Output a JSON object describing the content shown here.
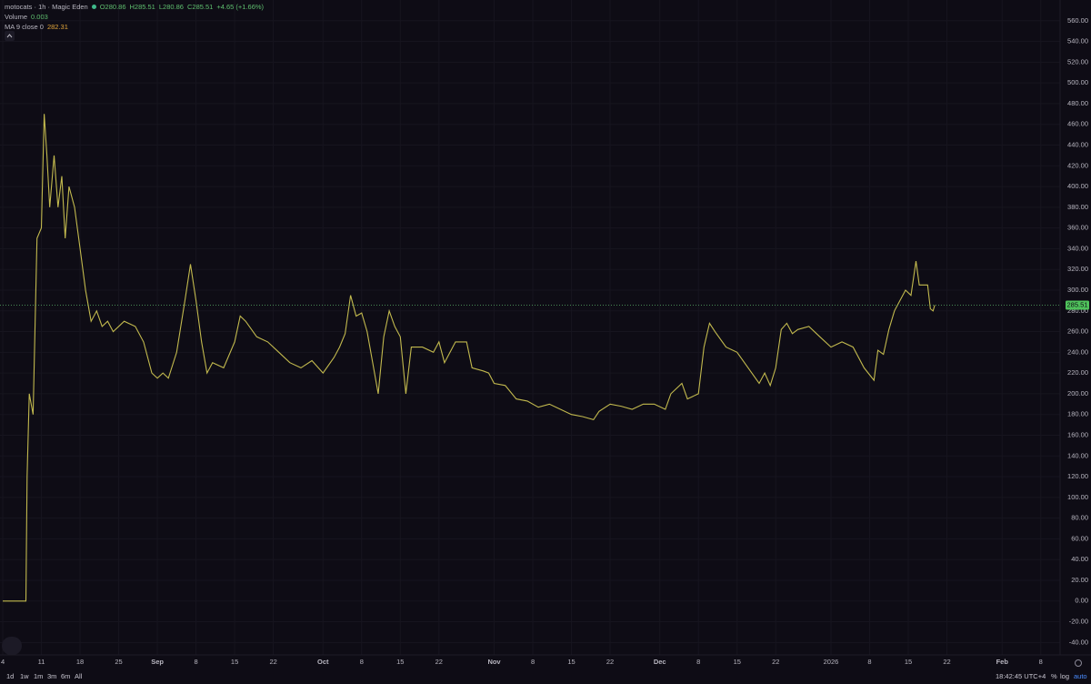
{
  "header": {
    "symbol": "motocats · 1h · Magic Eden",
    "open": "O280.86",
    "high": "H285.51",
    "low": "L280.86",
    "close": "C285.51",
    "change": "+4.65 (+1.66%)",
    "volume_label": "Volume",
    "volume_value": "0.003",
    "ma_label": "MA 9 close 0",
    "ma_value": "282.31"
  },
  "toolbar": {
    "ranges": [
      "1d",
      "1w",
      "1m",
      "3m",
      "6m",
      "All"
    ],
    "clock": "18:42:45 UTC+4",
    "percent": "%",
    "log": "log",
    "auto": "auto"
  },
  "chart_data": {
    "type": "line",
    "grid": true,
    "last_price": 285.51,
    "series": [
      {
        "color": "#c2b94e",
        "x": [
          0,
          4.2,
          4.4,
          4.8,
          5.5,
          6.2,
          7,
          7.5,
          8,
          8.5,
          9.3,
          10,
          10.7,
          11.3,
          12,
          13,
          14,
          15,
          16,
          17,
          18,
          19,
          20,
          22,
          24,
          25.5,
          27,
          28,
          29,
          30,
          31.5,
          33,
          34,
          35,
          36,
          37,
          38,
          40,
          42,
          43,
          44,
          46,
          48,
          50,
          52,
          54,
          56,
          58,
          60,
          61,
          62,
          63,
          64,
          65,
          66,
          67,
          68,
          69,
          70,
          71,
          72,
          73,
          74,
          76,
          78,
          79,
          80,
          82,
          84,
          85,
          87,
          88,
          89,
          91,
          93,
          95,
          97,
          99,
          101,
          103,
          105,
          107,
          108,
          110,
          112,
          114,
          116,
          118,
          120,
          121,
          123,
          124,
          126,
          127,
          128,
          129,
          131,
          133,
          135,
          137,
          138,
          139,
          140,
          141,
          142,
          143,
          144,
          146,
          148,
          150,
          152,
          154,
          156,
          157.8,
          158.5,
          159.5,
          160.5,
          161.5,
          162.5,
          163.5,
          164.5,
          165.4,
          166,
          167.5,
          168,
          168.5,
          168.8
        ],
        "values": [
          0,
          0,
          120,
          200,
          180,
          350,
          360,
          470,
          430,
          380,
          430,
          380,
          410,
          350,
          400,
          380,
          340,
          300,
          270,
          280,
          265,
          270,
          260,
          270,
          265,
          250,
          220,
          215,
          220,
          215,
          240,
          290,
          325,
          290,
          250,
          220,
          230,
          225,
          250,
          275,
          270,
          255,
          250,
          240,
          230,
          225,
          232,
          220,
          235,
          245,
          258,
          295,
          275,
          278,
          260,
          230,
          200,
          255,
          280,
          265,
          255,
          200,
          245,
          245,
          240,
          250,
          230,
          250,
          250,
          225,
          222,
          220,
          210,
          208,
          195,
          193,
          187,
          190,
          185,
          180,
          178,
          175,
          183,
          190,
          188,
          185,
          190,
          190,
          185,
          200,
          210,
          195,
          200,
          245,
          268,
          260,
          245,
          240,
          225,
          210,
          220,
          208,
          225,
          262,
          268,
          258,
          262,
          265,
          255,
          245,
          250,
          245,
          225,
          213,
          242,
          238,
          262,
          280,
          290,
          300,
          295,
          328,
          305,
          305,
          282,
          280,
          285.51
        ]
      }
    ],
    "xlim": [
      -0.5,
      191.5
    ],
    "xticks": [
      {
        "value": 0,
        "label": "4"
      },
      {
        "value": 7,
        "label": "11"
      },
      {
        "value": 14,
        "label": "18"
      },
      {
        "value": 21,
        "label": "25"
      },
      {
        "value": 28,
        "label": "Sep"
      },
      {
        "value": 35,
        "label": "8"
      },
      {
        "value": 42,
        "label": "15"
      },
      {
        "value": 49,
        "label": "22"
      },
      {
        "value": 58,
        "label": "Oct"
      },
      {
        "value": 65,
        "label": "8"
      },
      {
        "value": 72,
        "label": "15"
      },
      {
        "value": 79,
        "label": "22"
      },
      {
        "value": 89,
        "label": "Nov"
      },
      {
        "value": 96,
        "label": "8"
      },
      {
        "value": 103,
        "label": "15"
      },
      {
        "value": 110,
        "label": "22"
      },
      {
        "value": 119,
        "label": "Dec"
      },
      {
        "value": 126,
        "label": "8"
      },
      {
        "value": 133,
        "label": "15"
      },
      {
        "value": 140,
        "label": "22"
      },
      {
        "value": 150,
        "label": "2026"
      },
      {
        "value": 157,
        "label": "8"
      },
      {
        "value": 164,
        "label": "15"
      },
      {
        "value": 171,
        "label": "22"
      },
      {
        "value": 181,
        "label": "Feb"
      },
      {
        "value": 188,
        "label": "8"
      }
    ],
    "ylim": [
      -52,
      580
    ],
    "yticks": [
      {
        "value": -40,
        "label": "-40.00"
      },
      {
        "value": -20,
        "label": "-20.00"
      },
      {
        "value": 0,
        "label": "0.00"
      },
      {
        "value": 20,
        "label": "20.00"
      },
      {
        "value": 40,
        "label": "40.00"
      },
      {
        "value": 60,
        "label": "60.00"
      },
      {
        "value": 80,
        "label": "80.00"
      },
      {
        "value": 100,
        "label": "100.00"
      },
      {
        "value": 120,
        "label": "120.00"
      },
      {
        "value": 140,
        "label": "140.00"
      },
      {
        "value": 160,
        "label": "160.00"
      },
      {
        "value": 180,
        "label": "180.00"
      },
      {
        "value": 200,
        "label": "200.00"
      },
      {
        "value": 220,
        "label": "220.00"
      },
      {
        "value": 240,
        "label": "240.00"
      },
      {
        "value": 260,
        "label": "260.00"
      },
      {
        "value": 280,
        "label": "280.00"
      },
      {
        "value": 300,
        "label": "300.00"
      },
      {
        "value": 320,
        "label": "320.00"
      },
      {
        "value": 340,
        "label": "340.00"
      },
      {
        "value": 360,
        "label": "360.00"
      },
      {
        "value": 380,
        "label": "380.00"
      },
      {
        "value": 400,
        "label": "400.00"
      },
      {
        "value": 420,
        "label": "420.00"
      },
      {
        "value": 440,
        "label": "440.00"
      },
      {
        "value": 460,
        "label": "460.00"
      },
      {
        "value": 480,
        "label": "480.00"
      },
      {
        "value": 500,
        "label": "500.00"
      },
      {
        "value": 520,
        "label": "520.00"
      },
      {
        "value": 540,
        "label": "540.00"
      },
      {
        "value": 560,
        "label": "560.00"
      }
    ]
  }
}
